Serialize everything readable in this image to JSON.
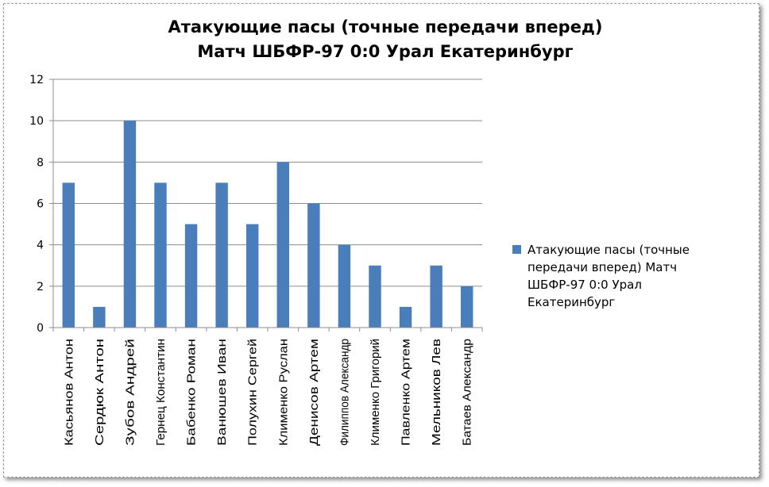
{
  "chart_data": {
    "type": "bar",
    "title": "Атакующие пасы (точные передачи вперед)",
    "subtitle": "Матч ШБФР-97  0:0  Урал Екатеринбург",
    "categories": [
      "Касьянов Антон",
      "Сердюк Антон",
      "Зубов Андрей",
      "Гернец Константин",
      "Бабенко Роман",
      "Ванюшев Иван",
      "Полухин Сергей",
      "Клименко Руслан",
      "Денисов Артем",
      "Филиппов Александр",
      "Клименко Григорий",
      "Павленко Артем",
      "Мельников Лев",
      "Батаев Александр"
    ],
    "series": [
      {
        "name": "Атакующие пасы (точные передачи вперед) Матч ШБФР-97  0:0  Урал Екатеринбург",
        "legend_lines": [
          "Атакующие пасы (точные",
          "передачи вперед) Матч",
          "ШБФР-97  0:0  Урал",
          "Екатеринбург"
        ],
        "values": [
          7,
          1,
          10,
          7,
          5,
          7,
          5,
          8,
          6,
          4,
          3,
          1,
          3,
          2
        ],
        "color": "#4a7ebb"
      }
    ],
    "ylim": [
      0,
      12
    ],
    "yticks": [
      "0",
      "2",
      "4",
      "6",
      "8",
      "10",
      "12"
    ],
    "xlabel": "",
    "ylabel": "",
    "grid": true,
    "legend": "right"
  }
}
